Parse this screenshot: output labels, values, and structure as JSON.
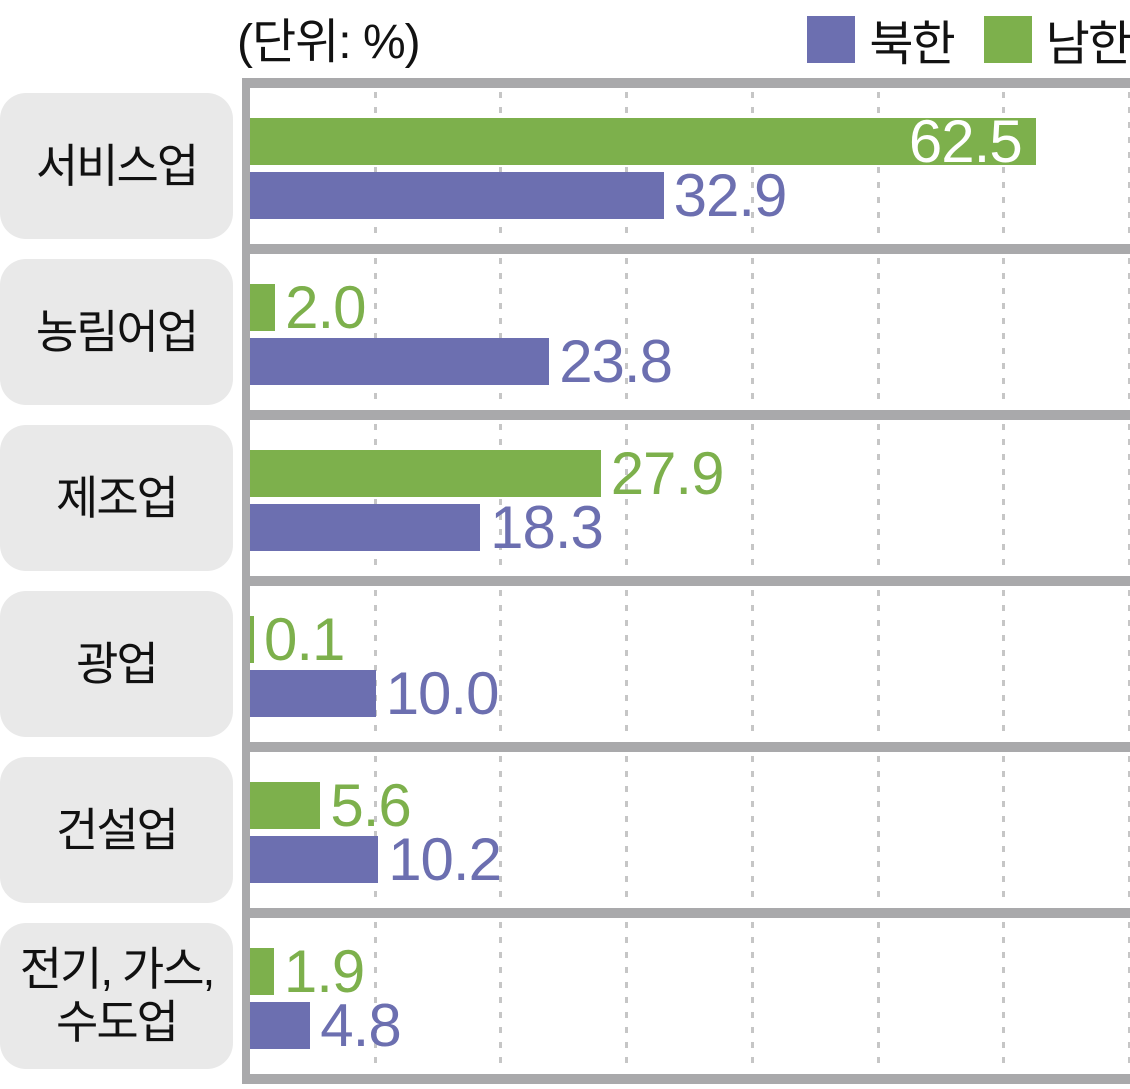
{
  "header": {
    "unit_label": "(단위: %)"
  },
  "legend": {
    "position": "top-right",
    "items": [
      {
        "label": "북한",
        "color": "#6C6FB0",
        "series": "north"
      },
      {
        "label": "남한",
        "color": "#7DB04C",
        "series": "south"
      }
    ]
  },
  "chart_data": {
    "type": "bar",
    "orientation": "horizontal",
    "title": "(단위: %)",
    "unit": "%",
    "categories": [
      "서비스업",
      "농림어업",
      "제조업",
      "광업",
      "건설업",
      "전기, 가스,\n수도업"
    ],
    "series": [
      {
        "name": "남한",
        "color": "#7DB04C",
        "values": [
          62.5,
          2.0,
          27.9,
          0.1,
          5.6,
          1.9
        ]
      },
      {
        "name": "북한",
        "color": "#6C6FB0",
        "values": [
          32.9,
          23.8,
          18.3,
          10.0,
          10.2,
          4.8
        ]
      }
    ],
    "bar_order_top_to_bottom": [
      "남한",
      "북한"
    ],
    "xlim": [
      0,
      70
    ],
    "grid_step": 10,
    "grid": true,
    "grid_style": "dashed-vertical",
    "value_labels": true,
    "legend_position": "top-right"
  },
  "styles": {
    "south_color": "#7DB04C",
    "north_color": "#6C6FB0",
    "label_box_bg": "#E9E9E9",
    "frame_color": "#A9A9AB",
    "grid_color": "#C6C6C6",
    "text_color": "#121212",
    "value_inside_color": "#FFFFFF"
  }
}
